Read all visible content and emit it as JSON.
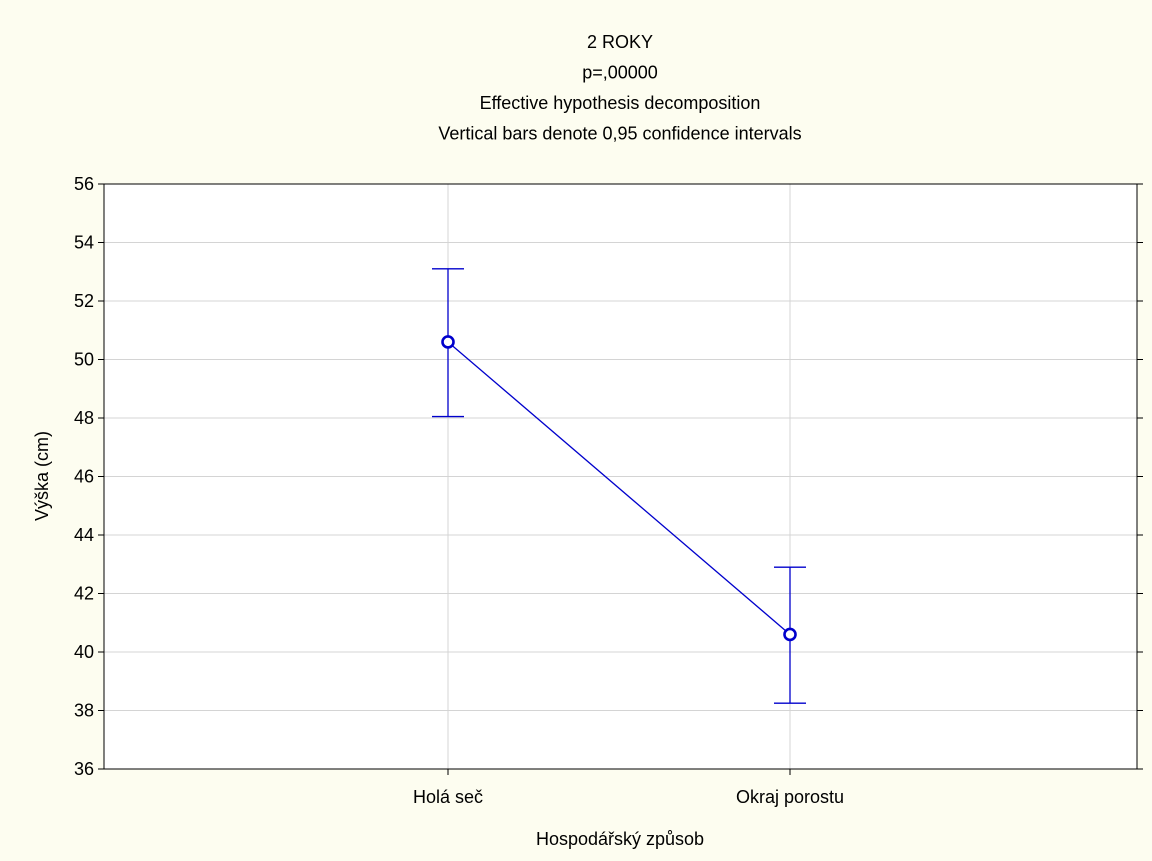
{
  "chart_data": {
    "type": "line",
    "title_lines": [
      "2 ROKY",
      "p=,00000",
      "Effective hypothesis decomposition",
      "Vertical bars denote 0,95 confidence intervals"
    ],
    "xlabel": "Hospodářský způsob",
    "ylabel": "Výška (cm)",
    "categories": [
      "Holá seč",
      "Okraj porostu"
    ],
    "series": [
      {
        "values": [
          50.6,
          40.6
        ],
        "ci_lower": [
          48.05,
          38.25
        ],
        "ci_upper": [
          53.1,
          42.9
        ],
        "color": "#0000cc"
      }
    ],
    "ylim": [
      36,
      56
    ],
    "yticks": [
      36,
      38,
      40,
      42,
      44,
      46,
      48,
      50,
      52,
      54,
      56
    ],
    "grid": true,
    "background": "#fdfdf0",
    "plot_background": "#ffffff"
  }
}
